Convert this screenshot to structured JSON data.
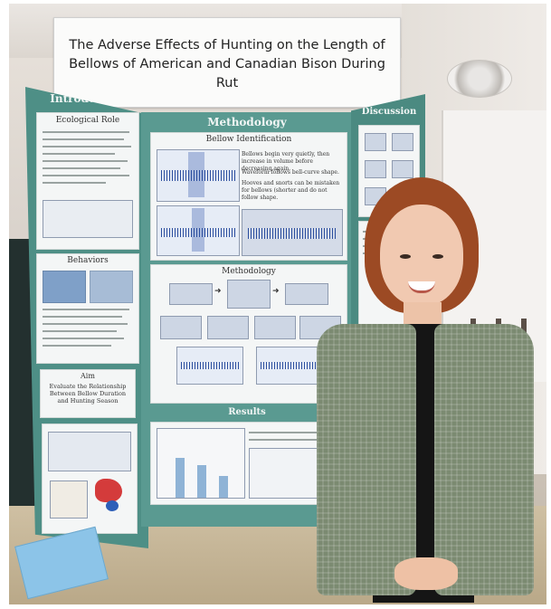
{
  "poster": {
    "title": "The Adverse Effects of Hunting on the Length of Bellows of American and Canadian Bison During Rut"
  },
  "panels": {
    "introduction": {
      "heading": "Introduction",
      "subheading": "Ecological Role"
    },
    "behaviors": {
      "heading": "Behaviors"
    },
    "aim": {
      "heading": "Aim",
      "text": "Evaluate the Relationship Between Bellow Duration and Hunting Season"
    },
    "methodology": {
      "heading": "Methodology",
      "bellow_card_title": "Bellow Identification",
      "bellow_bullets": [
        "Bellows begin very quietly, then increase in volume before decreasing again.",
        "Waveform follows bell-curve shape.",
        "Hooves and snorts can be mistaken for bellows (shorter and do not follow shape."
      ],
      "flow_card_title": "Methodology"
    },
    "results": {
      "heading": "Results"
    },
    "discussion": {
      "heading": "Discussion"
    }
  },
  "colors": {
    "board_teal": "#5a9a91",
    "hair": "#9c4a24",
    "cardigan": "#7b8a71"
  }
}
